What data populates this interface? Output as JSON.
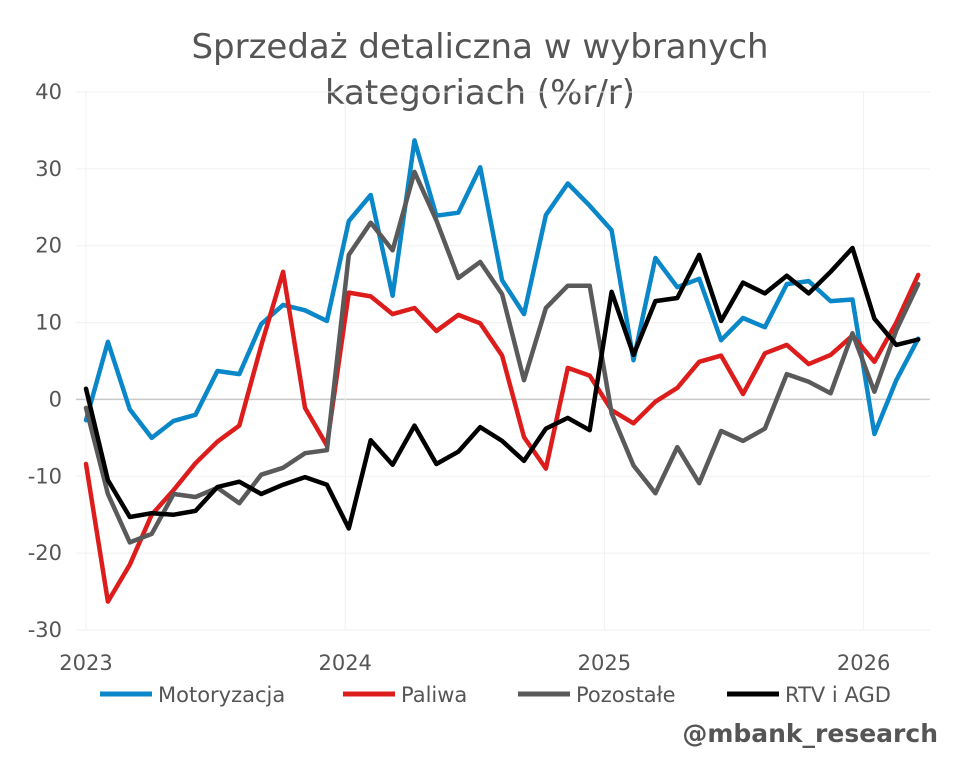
{
  "chart_data": {
    "type": "line",
    "title": [
      "Sprzedaż detaliczna w wybranych",
      "kategoriach (%r/r)"
    ],
    "xlabel": "",
    "ylabel": "",
    "ylim": [
      -30,
      40
    ],
    "yticks": [
      -30,
      -20,
      -10,
      0,
      10,
      20,
      30,
      40
    ],
    "xticks": [
      {
        "index": 0,
        "label": "2023"
      },
      {
        "index": 12,
        "label": "2024"
      },
      {
        "index": 24,
        "label": "2025"
      },
      {
        "index": 36,
        "label": "2026"
      }
    ],
    "x_note": "monthly, Jan 2023 - Mar 2026",
    "legend_position": "bottom",
    "grid": true,
    "series": [
      {
        "name": "Motoryzacja",
        "color": "#0a87c8",
        "values": [
          -2.7,
          7.5,
          -1.3,
          -5,
          -2.8,
          -2,
          3.7,
          3.3,
          9.8,
          12.3,
          11.6,
          10.2,
          23.2,
          26.6,
          13.5,
          33.7,
          23.9,
          24.3,
          30.2,
          15.5,
          11.1,
          24,
          28.1,
          25.2,
          22,
          5.1,
          18.4,
          14.6,
          15.7,
          7.7,
          10.6,
          9.4,
          15,
          15.4,
          12.8,
          13,
          -4.5,
          2.5,
          7.9
        ]
      },
      {
        "name": "Paliwa",
        "color": "#dd1c1c",
        "values": [
          -8.4,
          -26.3,
          -21.5,
          -15,
          -11.8,
          -8.3,
          -5.5,
          -3.4,
          7,
          16.6,
          -1.1,
          -6,
          13.9,
          13.4,
          11.1,
          11.9,
          8.9,
          11,
          9.9,
          5.7,
          -4.9,
          -9,
          4.1,
          3.1,
          -1.4,
          -3.1,
          -0.3,
          1.5,
          4.9,
          5.7,
          0.7,
          6,
          7.1,
          4.6,
          5.8,
          8.3,
          4.9,
          10,
          16.2
        ]
      },
      {
        "name": "Pozostałe",
        "color": "#5a5a5a",
        "values": [
          -1.1,
          -12.3,
          -18.6,
          -17.5,
          -12.3,
          -12.7,
          -11.5,
          -13.5,
          -9.8,
          -8.9,
          -7,
          -6.6,
          18.8,
          23,
          19.4,
          29.6,
          23.3,
          15.8,
          17.9,
          13.7,
          2.5,
          11.9,
          14.8,
          14.8,
          -1.8,
          -8.6,
          -12.2,
          -6.2,
          -10.9,
          -4.1,
          -5.4,
          -3.8,
          3.3,
          2.3,
          0.8,
          8.6,
          1,
          9,
          15
        ]
      },
      {
        "name": "RTV i AGD",
        "color": "#000000",
        "values": [
          1.4,
          -10.5,
          -15.3,
          -14.8,
          -15,
          -14.5,
          -11.4,
          -10.7,
          -12.3,
          -11.1,
          -10.1,
          -11.1,
          -16.8,
          -5.3,
          -8.5,
          -3.4,
          -8.4,
          -6.8,
          -3.6,
          -5.4,
          -8,
          -3.8,
          -2.4,
          -4,
          14,
          5.8,
          12.8,
          13.2,
          18.8,
          10.2,
          15.2,
          13.8,
          16.1,
          13.8,
          16.6,
          19.7,
          10.5,
          7.1,
          7.8
        ]
      }
    ]
  },
  "watermark": "@mbank_research"
}
